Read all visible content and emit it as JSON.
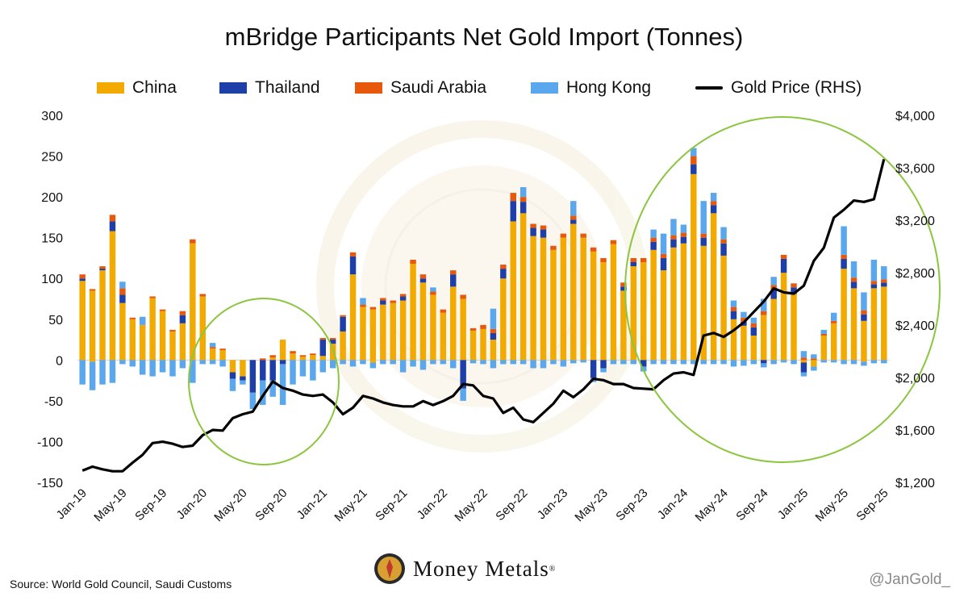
{
  "title": "mBridge Participants Net Gold Import (Tonnes)",
  "source": "Source: World Gold Council, Saudi Customs",
  "handle": "@JanGold_",
  "brand": {
    "name": "Money Metals",
    "mark": "®"
  },
  "colors": {
    "china": "#f2a900",
    "thailand": "#1f3fa8",
    "saudi": "#e8580c",
    "hongkong": "#5aa7ee",
    "gold": "#000000",
    "annotation": "#8cc63f"
  },
  "legend": [
    {
      "label": "China",
      "kind": "bar",
      "color": "#f2a900"
    },
    {
      "label": "Thailand",
      "kind": "bar",
      "color": "#1f3fa8"
    },
    {
      "label": "Saudi Arabia",
      "kind": "bar",
      "color": "#e8580c"
    },
    {
      "label": "Hong Kong",
      "kind": "bar",
      "color": "#5aa7ee"
    },
    {
      "label": "Gold Price (RHS)",
      "kind": "line",
      "color": "#000000"
    }
  ],
  "chart_data": {
    "type": "bar",
    "stacked": true,
    "xlabel": "",
    "ylabel": "",
    "ylim": [
      -150,
      300
    ],
    "y_ticks": [
      -150,
      -100,
      -50,
      0,
      50,
      100,
      150,
      200,
      250,
      300
    ],
    "y2lim": [
      1200,
      4000
    ],
    "y2_ticks": [
      "$1,200",
      "$1,600",
      "$2,000",
      "$2,400",
      "$2,800",
      "$3,200",
      "$3,600",
      "$4,000"
    ],
    "y2_tick_values": [
      1200,
      1600,
      2000,
      2400,
      2800,
      3200,
      3600,
      4000
    ],
    "categories": [
      "Jan-19",
      "Feb-19",
      "Mar-19",
      "Apr-19",
      "May-19",
      "Jun-19",
      "Jul-19",
      "Aug-19",
      "Sep-19",
      "Oct-19",
      "Nov-19",
      "Dec-19",
      "Jan-20",
      "Feb-20",
      "Mar-20",
      "Apr-20",
      "May-20",
      "Jun-20",
      "Jul-20",
      "Aug-20",
      "Sep-20",
      "Oct-20",
      "Nov-20",
      "Dec-20",
      "Jan-21",
      "Feb-21",
      "Mar-21",
      "Apr-21",
      "May-21",
      "Jun-21",
      "Jul-21",
      "Aug-21",
      "Sep-21",
      "Oct-21",
      "Nov-21",
      "Dec-21",
      "Jan-22",
      "Feb-22",
      "Mar-22",
      "Apr-22",
      "May-22",
      "Jun-22",
      "Jul-22",
      "Aug-22",
      "Sep-22",
      "Oct-22",
      "Nov-22",
      "Dec-22",
      "Jan-23",
      "Feb-23",
      "Mar-23",
      "Apr-23",
      "May-23",
      "Jun-23",
      "Jul-23",
      "Aug-23",
      "Sep-23",
      "Oct-23",
      "Nov-23",
      "Dec-23",
      "Jan-24",
      "Feb-24",
      "Mar-24",
      "Apr-24",
      "May-24",
      "Jun-24",
      "Jul-24",
      "Aug-24",
      "Sep-24",
      "Oct-24",
      "Nov-24",
      "Dec-24",
      "Jan-25",
      "Feb-25",
      "Mar-25",
      "Apr-25",
      "May-25",
      "Jun-25",
      "Jul-25",
      "Aug-25",
      "Sep-25"
    ],
    "x_tick_labels": [
      "Jan-19",
      "May-19",
      "Sep-19",
      "Jan-20",
      "May-20",
      "Sep-20",
      "Jan-21",
      "May-21",
      "Sep-21",
      "Jan-22",
      "May-22",
      "Sep-22",
      "Jan-23",
      "May-23",
      "Sep-23",
      "Jan-24",
      "May-24",
      "Sep-24",
      "Jan-25",
      "May-25",
      "Sep-25"
    ],
    "series": [
      {
        "name": "China",
        "values": [
          97,
          85,
          110,
          158,
          70,
          50,
          43,
          76,
          60,
          35,
          45,
          143,
          78,
          14,
          12,
          -10,
          -15,
          0,
          0,
          3,
          25,
          8,
          4,
          6,
          5,
          20,
          35,
          105,
          65,
          62,
          68,
          70,
          73,
          118,
          95,
          80,
          58,
          90,
          75,
          36,
          38,
          25,
          100,
          170,
          180,
          152,
          150,
          135,
          150,
          167,
          150,
          133,
          120,
          142,
          85,
          115,
          120,
          135,
          110,
          138,
          143,
          228,
          140,
          180,
          128,
          50,
          42,
          30,
          55,
          75,
          107,
          81,
          -3,
          -8,
          30,
          45,
          112,
          88,
          48,
          88,
          90
        ],
        "neg": [
          0,
          -2,
          0,
          0,
          0,
          0,
          0,
          0,
          0,
          0,
          0,
          0,
          0,
          0,
          0,
          -5,
          -5,
          0,
          0,
          0,
          0,
          0,
          0,
          0,
          0,
          0,
          0,
          0,
          0,
          -3,
          0,
          0,
          0,
          0,
          0,
          0,
          0,
          0,
          0,
          0,
          0,
          0,
          0,
          0,
          0,
          0,
          0,
          0,
          0,
          0,
          0,
          0,
          0,
          0,
          0,
          0,
          0,
          0,
          0,
          0,
          0,
          0,
          0,
          0,
          0,
          0,
          0,
          0,
          0,
          0,
          0,
          0,
          0,
          0,
          0,
          0,
          0,
          0,
          -2,
          0,
          0
        ]
      },
      {
        "name": "Thailand",
        "values": [
          3,
          0,
          2,
          12,
          10,
          0,
          0,
          0,
          0,
          0,
          10,
          0,
          0,
          0,
          0,
          -8,
          -5,
          -40,
          -25,
          -25,
          -5,
          0,
          0,
          0,
          20,
          5,
          18,
          22,
          0,
          0,
          5,
          0,
          5,
          0,
          5,
          0,
          0,
          15,
          -35,
          0,
          0,
          8,
          12,
          25,
          14,
          10,
          10,
          0,
          0,
          5,
          0,
          -22,
          -10,
          0,
          5,
          5,
          -8,
          10,
          15,
          10,
          8,
          12,
          10,
          10,
          15,
          10,
          5,
          10,
          -4,
          12,
          17,
          8,
          -12,
          0,
          0,
          0,
          12,
          8,
          8,
          5,
          5
        ]
      },
      {
        "name": "Saudi Arabia",
        "values": [
          5,
          2,
          3,
          8,
          8,
          2,
          0,
          2,
          2,
          2,
          5,
          5,
          3,
          2,
          2,
          0,
          0,
          0,
          2,
          3,
          0,
          3,
          2,
          2,
          2,
          2,
          2,
          5,
          3,
          3,
          3,
          3,
          3,
          5,
          5,
          4,
          4,
          5,
          5,
          3,
          5,
          5,
          5,
          10,
          6,
          5,
          5,
          5,
          5,
          5,
          5,
          5,
          5,
          5,
          5,
          5,
          5,
          5,
          5,
          5,
          5,
          10,
          5,
          5,
          5,
          5,
          5,
          5,
          5,
          5,
          5,
          5,
          3,
          2,
          2,
          3,
          5,
          5,
          5,
          4,
          4
        ]
      },
      {
        "name": "Hong Kong",
        "values": [
          -30,
          -35,
          -30,
          -28,
          -5,
          -8,
          -18,
          -20,
          -15,
          -20,
          -10,
          -28,
          -5,
          -5,
          -8,
          -15,
          -5,
          -20,
          -30,
          -20,
          -50,
          -30,
          -20,
          -25,
          -15,
          -10,
          -5,
          -8,
          -5,
          -7,
          -5,
          -5,
          -15,
          -8,
          -12,
          -5,
          -5,
          -10,
          -15,
          -4,
          -5,
          -10,
          -5,
          -5,
          -5,
          -10,
          -10,
          -5,
          -8,
          -4,
          -3,
          -5,
          -5,
          -5,
          -5,
          -5,
          -6,
          -5,
          -5,
          -5,
          -5,
          -5,
          -5,
          -5,
          -5,
          -8,
          -7,
          -5,
          -5,
          -5,
          -3,
          -5,
          -5,
          -5,
          -3,
          -3,
          -5,
          -5,
          -5,
          -4,
          -4
        ],
        "pos_values": [
          0,
          0,
          0,
          0,
          8,
          0,
          10,
          0,
          0,
          0,
          0,
          0,
          0,
          5,
          0,
          0,
          0,
          0,
          0,
          0,
          0,
          0,
          0,
          0,
          0,
          0,
          0,
          0,
          8,
          0,
          0,
          0,
          0,
          0,
          0,
          5,
          0,
          0,
          0,
          0,
          0,
          25,
          0,
          0,
          12,
          0,
          0,
          0,
          0,
          18,
          0,
          0,
          0,
          0,
          0,
          0,
          0,
          10,
          25,
          20,
          10,
          10,
          40,
          10,
          15,
          8,
          7,
          7,
          15,
          10,
          0,
          0,
          8,
          5,
          5,
          10,
          35,
          20,
          22,
          26,
          16
        ]
      }
    ],
    "gold_price_rhs": [
      1290,
      1320,
      1300,
      1285,
      1285,
      1350,
      1410,
      1500,
      1510,
      1495,
      1470,
      1480,
      1560,
      1600,
      1595,
      1690,
      1720,
      1740,
      1860,
      1970,
      1920,
      1900,
      1870,
      1860,
      1870,
      1810,
      1720,
      1770,
      1860,
      1840,
      1810,
      1790,
      1780,
      1780,
      1820,
      1790,
      1820,
      1860,
      1950,
      1940,
      1860,
      1840,
      1730,
      1770,
      1680,
      1660,
      1730,
      1800,
      1900,
      1850,
      1910,
      1990,
      1980,
      1950,
      1950,
      1920,
      1915,
      1910,
      1980,
      2030,
      2040,
      2020,
      2320,
      2340,
      2310,
      2360,
      2420,
      2500,
      2580,
      2680,
      2650,
      2640,
      2700,
      2890,
      2990,
      3220,
      3280,
      3350,
      3340,
      3360,
      3665
    ]
  }
}
